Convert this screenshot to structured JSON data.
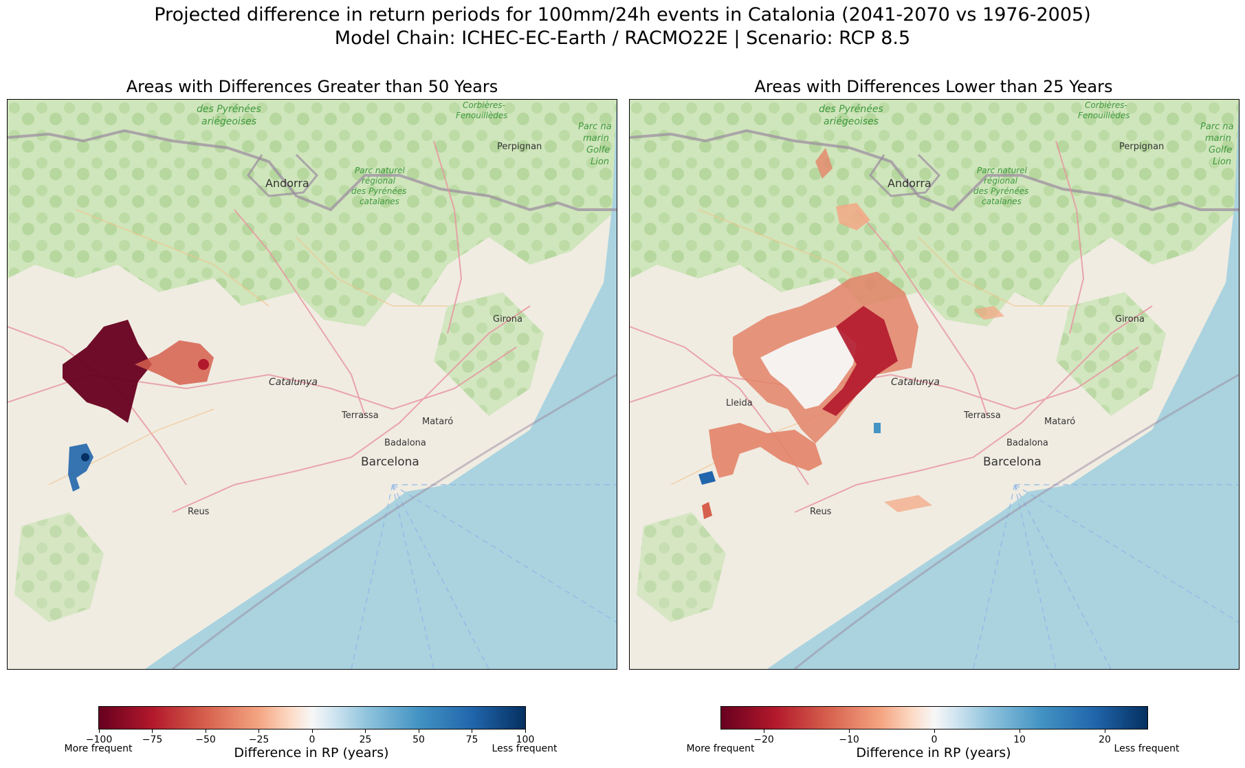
{
  "figure": {
    "title_line1": "Projected difference in return periods for 100mm/24h events in Catalonia (2041-2070 vs 1976-2005)",
    "title_line2": "Model Chain: ICHEC-EC-Earth / RACMO22E  | Scenario: RCP 8.5"
  },
  "panels": [
    {
      "title": "Areas with Differences Greater than 50 Years",
      "colorbar": {
        "ticks": [
          "−100",
          "−75",
          "−50",
          "−25",
          "0",
          "25",
          "50",
          "75",
          "100"
        ],
        "tick_values": [
          -100,
          -75,
          -50,
          -25,
          0,
          25,
          50,
          75,
          100
        ],
        "range": [
          -100,
          100
        ],
        "left_label": "More frequent",
        "right_label": "Less frequent",
        "label": "Difference in RP (years)",
        "colormap": "RdBu"
      }
    },
    {
      "title": "Areas with Differences Lower than 25 Years",
      "colorbar": {
        "ticks": [
          "−20",
          "−10",
          "0",
          "10",
          "20"
        ],
        "tick_values": [
          -20,
          -10,
          0,
          10,
          20
        ],
        "range": [
          -25,
          25
        ],
        "left_label": "More frequent",
        "right_label": "Less frequent",
        "label": "Difference in RP (years)",
        "colormap": "RdBu"
      }
    }
  ],
  "map_labels": {
    "andorra": "Andorra",
    "perpignan": "Perpignan",
    "girona": "Girona",
    "catalunya": "Catalunya",
    "terrassa": "Terrassa",
    "mataro": "Mataró",
    "badalona": "Badalona",
    "barcelona": "Barcelona",
    "reus": "Reus",
    "lleida": "Lleida",
    "park_pyr_1": "des Pyrénées",
    "park_pyr_2": "ariégeoises",
    "park_cor_1": "Corbières-",
    "park_cor_2": "Fenouillèdes",
    "park_reg_1": "Parc naturel",
    "park_reg_2": "régional",
    "park_reg_3": "des Pyrénées",
    "park_reg_4": "catalanes",
    "park_golfe_1": "Parc na",
    "park_golfe_2": "marin",
    "park_golfe_3": "Golfe",
    "park_golfe_4": "Lion"
  },
  "colors": {
    "sea": "#aad3df",
    "land": "#f0ece2",
    "forest": "#c5e0b0",
    "strong_red": "#67001f",
    "red": "#b2182b",
    "light_red": "#e38469",
    "blue": "#2166ac"
  }
}
